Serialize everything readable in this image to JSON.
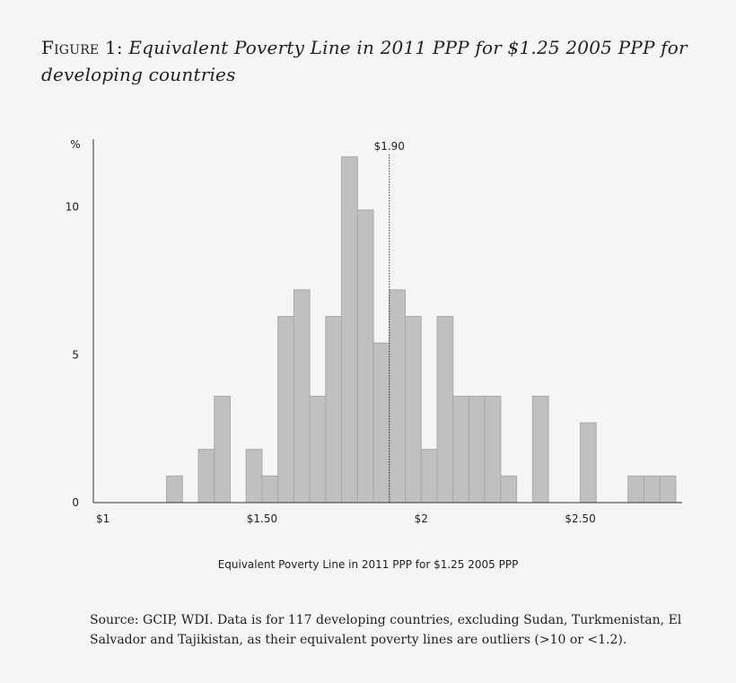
{
  "caption": {
    "label": "Figure 1:",
    "title": "Equivalent Poverty Line in 2011 PPP for $1.25 2005 PPP for developing countries"
  },
  "source": "Source: GCIP, WDI. Data is for 117 developing countries, excluding Sudan, Turkmenistan, El Salvador and Tajikistan, as their equivalent poverty lines are outliers (>10 or <1.2).",
  "chart_data": {
    "type": "bar",
    "xlabel": "Equivalent Poverty Line in 2011 PPP for $1.25 2005 PPP",
    "ylabel": "%",
    "xlim": [
      0.97,
      2.82
    ],
    "ylim": [
      0,
      12.3
    ],
    "bin_width": 0.05,
    "x_ticks": [
      {
        "value": 1,
        "label": "$1"
      },
      {
        "value": 1.5,
        "label": "$1.50"
      },
      {
        "value": 2,
        "label": "$2"
      },
      {
        "value": 2.5,
        "label": "$2.50"
      }
    ],
    "y_ticks": [
      {
        "value": 0,
        "label": "0"
      },
      {
        "value": 5,
        "label": "5"
      },
      {
        "value": 10,
        "label": "10"
      }
    ],
    "reference_line": {
      "value": 1.9,
      "label": "$1.90",
      "style": "dotted"
    },
    "bar_color": "#c0c0c0",
    "bins": [
      {
        "x": 1.2,
        "value": 0.9
      },
      {
        "x": 1.3,
        "value": 1.8
      },
      {
        "x": 1.35,
        "value": 3.6
      },
      {
        "x": 1.45,
        "value": 1.8
      },
      {
        "x": 1.5,
        "value": 0.9
      },
      {
        "x": 1.55,
        "value": 6.3
      },
      {
        "x": 1.6,
        "value": 7.2
      },
      {
        "x": 1.65,
        "value": 3.6
      },
      {
        "x": 1.7,
        "value": 6.3
      },
      {
        "x": 1.75,
        "value": 11.7
      },
      {
        "x": 1.8,
        "value": 9.9
      },
      {
        "x": 1.85,
        "value": 5.4
      },
      {
        "x": 1.9,
        "value": 7.2
      },
      {
        "x": 1.95,
        "value": 6.3
      },
      {
        "x": 2.0,
        "value": 1.8
      },
      {
        "x": 2.05,
        "value": 6.3
      },
      {
        "x": 2.1,
        "value": 3.6
      },
      {
        "x": 2.15,
        "value": 3.6
      },
      {
        "x": 2.2,
        "value": 3.6
      },
      {
        "x": 2.25,
        "value": 0.9
      },
      {
        "x": 2.35,
        "value": 3.6
      },
      {
        "x": 2.5,
        "value": 2.7
      },
      {
        "x": 2.65,
        "value": 0.9
      },
      {
        "x": 2.7,
        "value": 0.9
      },
      {
        "x": 2.75,
        "value": 0.9
      }
    ]
  }
}
